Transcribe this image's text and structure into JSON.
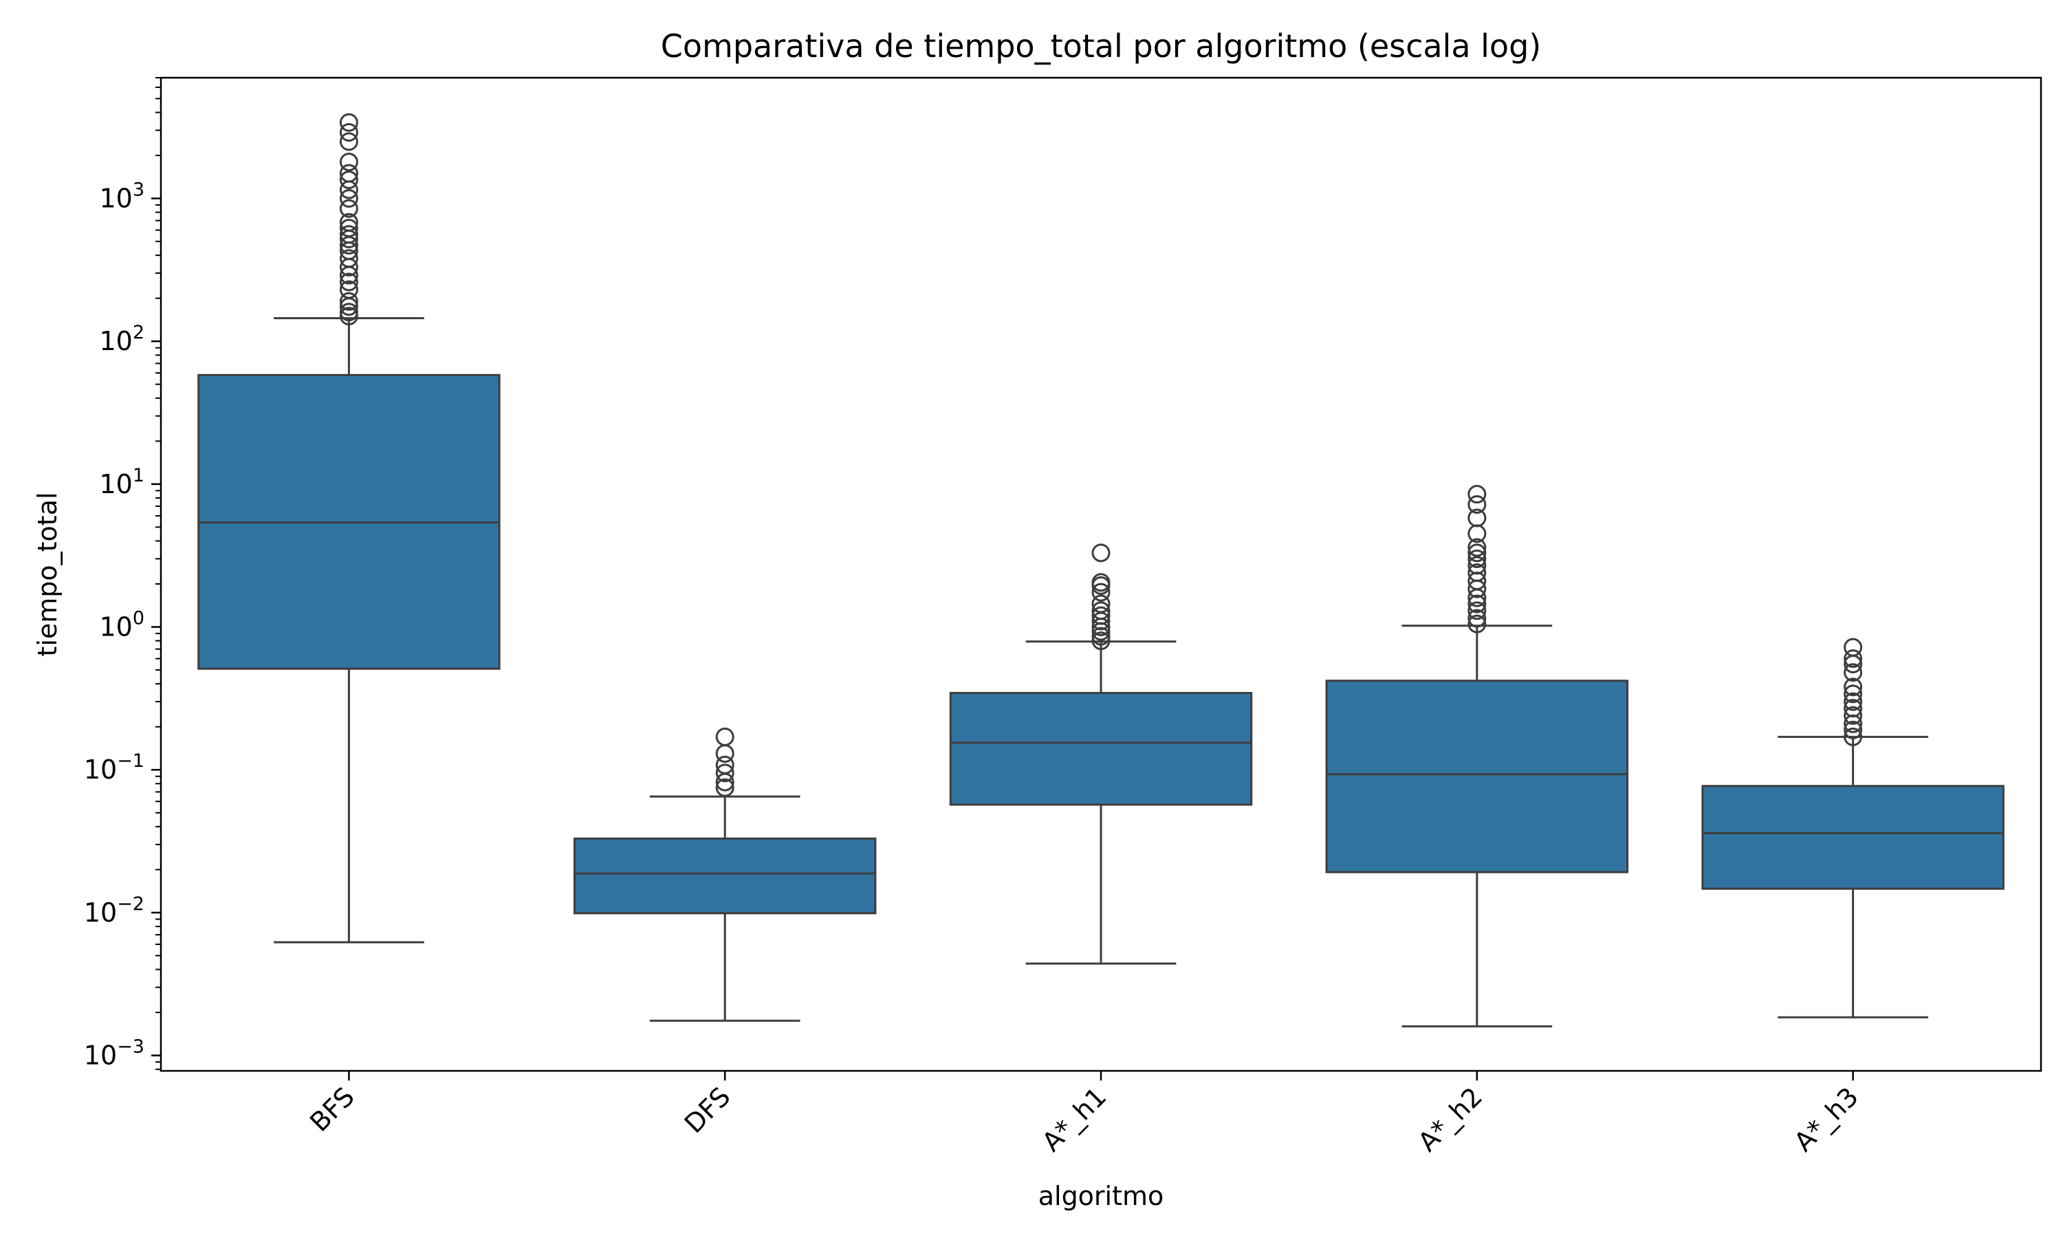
{
  "chart_data": {
    "type": "boxplot",
    "title": "Comparativa de tiempo_total por algoritmo (escala log)",
    "xlabel": "algoritmo",
    "ylabel": "tiempo_total",
    "yscale": "log",
    "ylim": [
      0.00078,
      7000
    ],
    "yticks": [
      {
        "value": 0.001,
        "base": "10",
        "exp": "−3"
      },
      {
        "value": 0.01,
        "base": "10",
        "exp": "−2"
      },
      {
        "value": 0.1,
        "base": "10",
        "exp": "−1"
      },
      {
        "value": 1,
        "base": "10",
        "exp": "0"
      },
      {
        "value": 10,
        "base": "10",
        "exp": "1"
      },
      {
        "value": 100,
        "base": "10",
        "exp": "2"
      },
      {
        "value": 1000,
        "base": "10",
        "exp": "3"
      }
    ],
    "categories": [
      "BFS",
      "DFS",
      "A*_h1",
      "A*_h2",
      "A*_h3"
    ],
    "box_color": "#3274a1",
    "line_color": "#3d3d3d",
    "grid": false,
    "boxes": [
      {
        "name": "BFS",
        "whisker_low": 0.0062,
        "q1": 0.51,
        "median": 5.4,
        "q3": 58,
        "whisker_high": 145,
        "outliers": [
          150,
          160,
          175,
          190,
          230,
          260,
          290,
          330,
          380,
          430,
          470,
          520,
          560,
          620,
          680,
          850,
          1000,
          1150,
          1350,
          1500,
          1800,
          2500,
          2900,
          3400
        ]
      },
      {
        "name": "DFS",
        "whisker_low": 0.00175,
        "q1": 0.0099,
        "median": 0.0188,
        "q3": 0.033,
        "whisker_high": 0.065,
        "outliers": [
          0.075,
          0.082,
          0.095,
          0.108,
          0.13,
          0.17
        ]
      },
      {
        "name": "A*_h1",
        "whisker_low": 0.0044,
        "q1": 0.057,
        "median": 0.155,
        "q3": 0.345,
        "whisker_high": 0.79,
        "outliers": [
          0.8,
          0.86,
          0.93,
          1.0,
          1.1,
          1.2,
          1.3,
          1.45,
          1.75,
          1.95,
          2.05,
          3.3
        ]
      },
      {
        "name": "A*_h2",
        "whisker_low": 0.0016,
        "q1": 0.0192,
        "median": 0.093,
        "q3": 0.42,
        "whisker_high": 1.02,
        "outliers": [
          1.05,
          1.15,
          1.3,
          1.45,
          1.6,
          1.85,
          2.1,
          2.4,
          2.7,
          3.0,
          3.3,
          3.6,
          4.5,
          5.8,
          7.2,
          8.5
        ]
      },
      {
        "name": "A*_h3",
        "whisker_low": 0.00185,
        "q1": 0.0147,
        "median": 0.036,
        "q3": 0.077,
        "whisker_high": 0.17,
        "outliers": [
          0.17,
          0.19,
          0.21,
          0.24,
          0.27,
          0.3,
          0.34,
          0.38,
          0.48,
          0.55,
          0.6,
          0.72
        ]
      }
    ]
  }
}
